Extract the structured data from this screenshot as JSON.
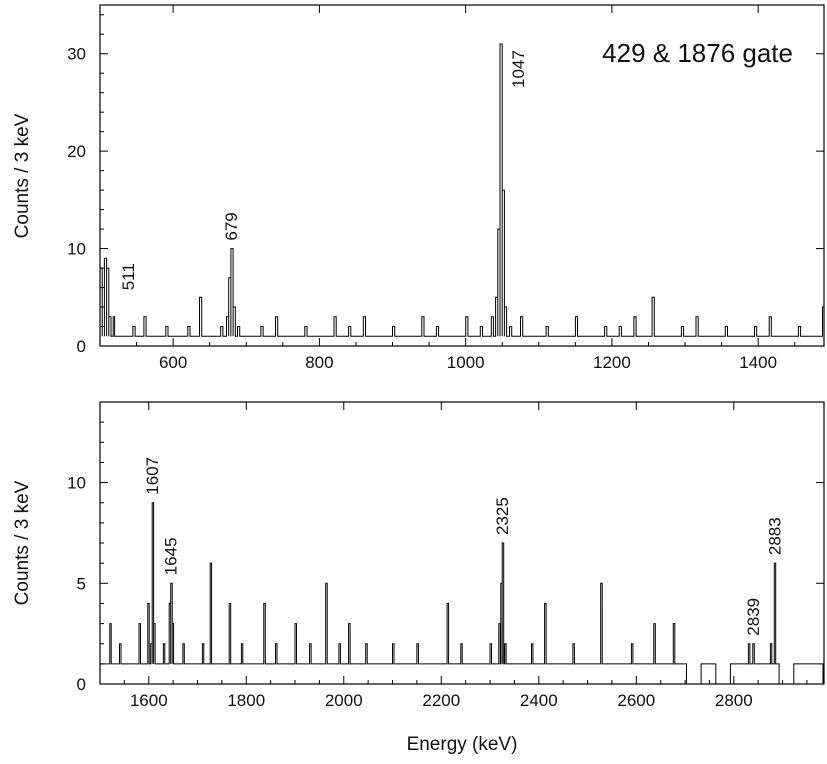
{
  "chart_data": [
    {
      "type": "line",
      "title": "429 & 1876 gate",
      "xlabel": "",
      "ylabel": "Counts / 3 keV",
      "xlim": [
        500,
        1490
      ],
      "ylim": [
        0,
        35
      ],
      "x_ticks": [
        600,
        800,
        1000,
        1200,
        1400
      ],
      "y_ticks": [
        0,
        10,
        20,
        30
      ],
      "bin_width_keV": 3,
      "peak_labels": [
        {
          "text": "511",
          "energy": 511,
          "counts": 9
        },
        {
          "text": "679",
          "energy": 679,
          "counts": 10
        },
        {
          "text": "1047",
          "energy": 1047,
          "counts": 31
        }
      ],
      "series": [
        {
          "values_note": "histogram counts per 3 keV bin (selected peaks; remaining bins low background 0-5)",
          "x": [
            500,
            503,
            506,
            509,
            512,
            515,
            518,
            520,
            530,
            545,
            560,
            575,
            590,
            605,
            620,
            636,
            650,
            665,
            673,
            676,
            679,
            682,
            688,
            700,
            720,
            740,
            760,
            780,
            800,
            820,
            840,
            860,
            880,
            900,
            920,
            940,
            960,
            980,
            1000,
            1020,
            1035,
            1041,
            1044,
            1047,
            1050,
            1053,
            1060,
            1075,
            1090,
            1110,
            1130,
            1150,
            1170,
            1190,
            1210,
            1230,
            1255,
            1275,
            1295,
            1315,
            1335,
            1355,
            1375,
            1395,
            1415,
            1435,
            1455,
            1475,
            1488
          ],
          "y": [
            8,
            6,
            9,
            8,
            3,
            1,
            3,
            1,
            1,
            2,
            3,
            1,
            2,
            1,
            2,
            5,
            1,
            2,
            3,
            7,
            10,
            4,
            2,
            1,
            2,
            3,
            1,
            2,
            1,
            3,
            2,
            3,
            1,
            2,
            1,
            3,
            2,
            1,
            3,
            2,
            3,
            5,
            12,
            31,
            16,
            4,
            2,
            3,
            1,
            2,
            1,
            3,
            1,
            2,
            2,
            3,
            5,
            1,
            2,
            3,
            1,
            2,
            1,
            2,
            3,
            1,
            2,
            1,
            4
          ]
        }
      ]
    },
    {
      "type": "line",
      "title": "",
      "xlabel": "Energy (keV)",
      "ylabel": "Counts / 3 keV",
      "xlim": [
        1500,
        2985
      ],
      "ylim": [
        0,
        14
      ],
      "x_ticks": [
        1600,
        1800,
        2000,
        2200,
        2400,
        2600,
        2800
      ],
      "y_ticks": [
        0,
        5,
        10
      ],
      "bin_width_keV": 3,
      "peak_labels": [
        {
          "text": "1607",
          "energy": 1607,
          "counts": 9
        },
        {
          "text": "1645",
          "energy": 1645,
          "counts": 5
        },
        {
          "text": "2325",
          "energy": 2325,
          "counts": 7
        },
        {
          "text": "2839",
          "energy": 2839,
          "counts": 2
        },
        {
          "text": "2883",
          "energy": 2883,
          "counts": 6
        }
      ],
      "series": [
        {
          "values_note": "histogram counts per 3 keV bin (selected peaks; remaining bins low background 0-2)",
          "x": [
            1500,
            1520,
            1540,
            1560,
            1580,
            1598,
            1604,
            1607,
            1610,
            1616,
            1630,
            1642,
            1645,
            1648,
            1655,
            1670,
            1690,
            1710,
            1726,
            1740,
            1765,
            1790,
            1810,
            1836,
            1860,
            1880,
            1900,
            1930,
            1960,
            1963,
            1990,
            2010,
            2045,
            2070,
            2100,
            2125,
            2150,
            2180,
            2212,
            2240,
            2270,
            2300,
            2318,
            2322,
            2325,
            2330,
            2360,
            2385,
            2412,
            2440,
            2470,
            2500,
            2527,
            2560,
            2590,
            2620,
            2636,
            2660,
            2676,
            2700,
            2730,
            2760,
            2790,
            2810,
            2830,
            2839,
            2860,
            2875,
            2883,
            2890,
            2920,
            2950,
            2980
          ],
          "y": [
            1,
            3,
            2,
            1,
            3,
            4,
            2,
            9,
            3,
            1,
            2,
            4,
            5,
            3,
            1,
            2,
            1,
            2,
            6,
            1,
            4,
            2,
            1,
            4,
            2,
            1,
            3,
            2,
            1,
            5,
            2,
            3,
            2,
            1,
            2,
            1,
            2,
            1,
            4,
            2,
            1,
            2,
            3,
            5,
            7,
            2,
            1,
            2,
            4,
            1,
            2,
            1,
            5,
            1,
            2,
            1,
            3,
            1,
            3,
            1,
            0,
            1,
            0,
            1,
            2,
            2,
            1,
            2,
            6,
            1,
            0,
            1,
            1
          ]
        }
      ]
    }
  ]
}
